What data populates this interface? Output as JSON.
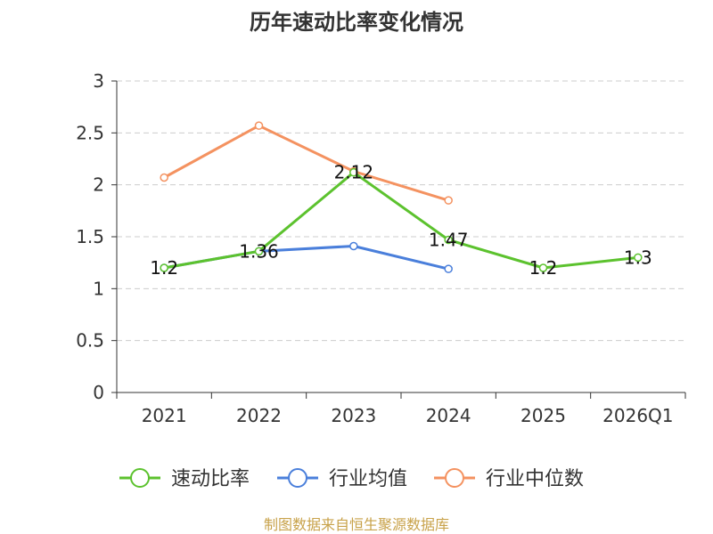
{
  "chart_data": {
    "type": "line",
    "title": "历年速动比率变化情况",
    "categories": [
      "2021",
      "2022",
      "2023",
      "2024",
      "2025",
      "2026Q1"
    ],
    "ylim": [
      0,
      3
    ],
    "yticks": [
      "0",
      "0.5",
      "1",
      "1.5",
      "2",
      "2.5",
      "3"
    ],
    "grid": true,
    "legend_position": "bottom",
    "series": [
      {
        "name": "速动比率",
        "color": "#5cc22e",
        "values": [
          1.2,
          1.36,
          2.12,
          1.47,
          1.2,
          1.3
        ],
        "labels": [
          "1.2",
          "1.36",
          "2.12",
          "1.47",
          "1.2",
          "1.3"
        ]
      },
      {
        "name": "行业均值",
        "color": "#4a7fdb",
        "values": [
          1.2,
          1.36,
          1.41,
          1.19,
          null,
          null
        ]
      },
      {
        "name": "行业中位数",
        "color": "#f49260",
        "values": [
          2.07,
          2.57,
          2.13,
          1.85,
          null,
          null
        ]
      }
    ],
    "source": "制图数据来自恒生聚源数据库"
  },
  "colors": {
    "axis": "#333333",
    "grid": "#cccccc",
    "source_text": "#c8a24a"
  }
}
